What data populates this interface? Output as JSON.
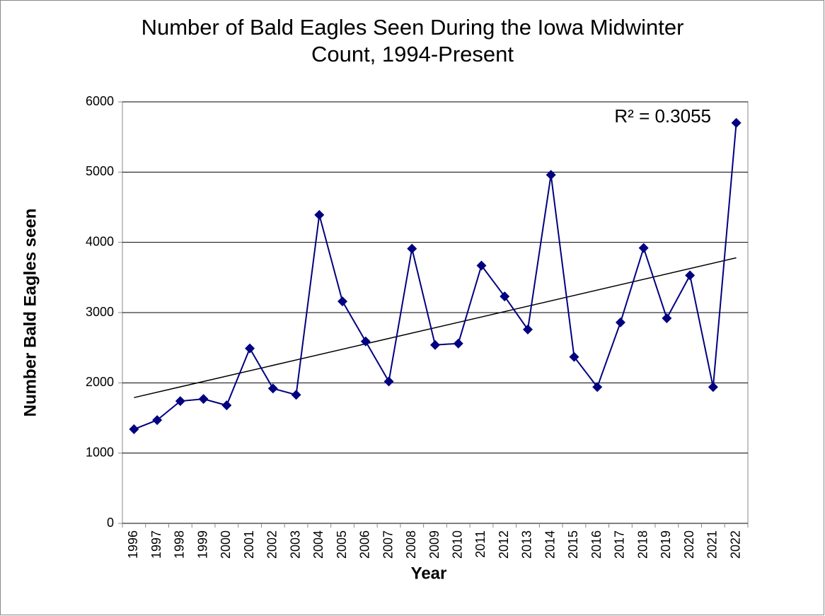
{
  "chart_data": {
    "type": "line",
    "title": "Number of Bald Eagles Seen During the Iowa Midwinter Count, 1994-Present",
    "x_label": "Year",
    "y_label": "Number Bald Eagles seen",
    "categories": [
      "1996",
      "1997",
      "1998",
      "1999",
      "2000",
      "2001",
      "2002",
      "2003",
      "2004",
      "2005",
      "2006",
      "2007",
      "2008",
      "2009",
      "2010",
      "2011",
      "2012",
      "2013",
      "2014",
      "2015",
      "2016",
      "2017",
      "2018",
      "2019",
      "2020",
      "2021",
      "2022"
    ],
    "series": [
      {
        "name": "Number Bald Eagles seen",
        "color": "#000080",
        "values": [
          1340,
          1470,
          1740,
          1770,
          1680,
          2490,
          1920,
          1830,
          4390,
          3160,
          2590,
          2020,
          3910,
          2540,
          2560,
          3670,
          3230,
          2760,
          4960,
          2370,
          1940,
          2860,
          3920,
          2920,
          3530,
          1940,
          5700
        ]
      }
    ],
    "trendline": {
      "start": 1790,
      "end": 3780,
      "color": "#000000",
      "label": "R² = 0.3055"
    },
    "ylim": [
      0,
      6000
    ],
    "yticks": [
      0,
      1000,
      2000,
      3000,
      4000,
      5000,
      6000
    ],
    "grid": true
  }
}
